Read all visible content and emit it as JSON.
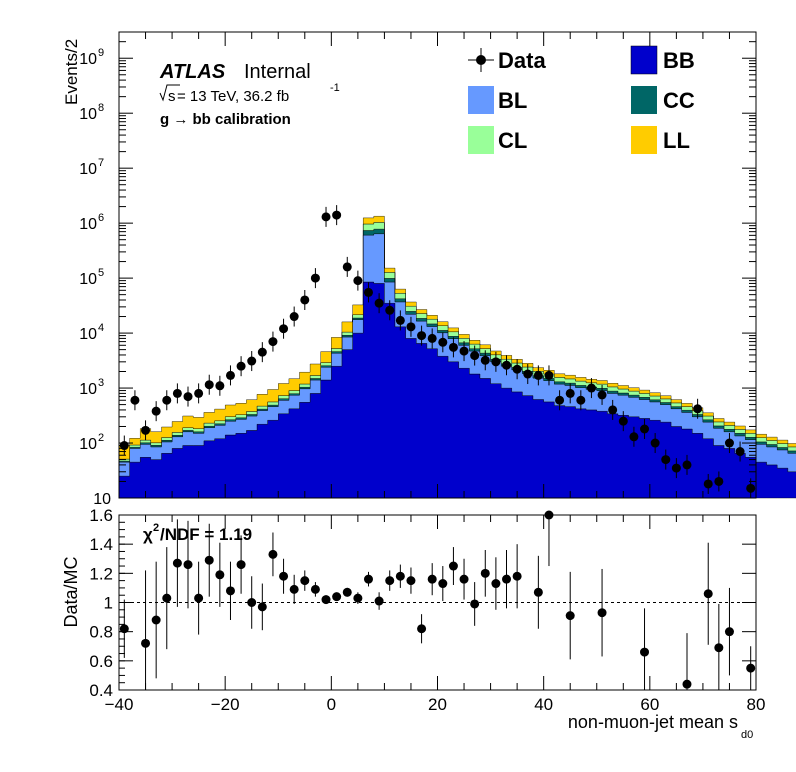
{
  "chart_data": [
    {
      "type": "histogram",
      "stacked": true,
      "log_scale_y": true,
      "ylabel": "Events/2",
      "xlim": [
        -40,
        80
      ],
      "ylim": [
        10,
        3000000000
      ],
      "y_tick_labels": [
        "10",
        "10^2",
        "10^3",
        "10^4",
        "10^5",
        "10^6",
        "10^7",
        "10^8",
        "10^9"
      ],
      "text": {
        "atlas": "ATLAS",
        "internal": "Internal",
        "energy_prefix": "s",
        "energy_text": " = 13 TeV, 36.2 fb",
        "energy_sup": "-1",
        "calibration": "g  → bb calibration"
      },
      "legend": [
        {
          "name": "Data",
          "color": "#000000",
          "kind": "marker"
        },
        {
          "name": "BB",
          "color": "#0000cc",
          "kind": "fill"
        },
        {
          "name": "BL",
          "color": "#6699ff",
          "kind": "fill"
        },
        {
          "name": "CC",
          "color": "#006666",
          "kind": "fill"
        },
        {
          "name": "CL",
          "color": "#99ff99",
          "kind": "fill"
        },
        {
          "name": "LL",
          "color": "#ffcc00",
          "kind": "fill"
        }
      ],
      "bin_edges_start": -40,
      "bin_width": 2,
      "series": [
        {
          "name": "BB",
          "color": "#0000cc",
          "values": [
            25,
            45,
            55,
            50,
            65,
            80,
            90,
            90,
            110,
            120,
            140,
            150,
            170,
            220,
            260,
            340,
            420,
            550,
            800,
            1400,
            2500,
            5000,
            10000,
            85000,
            80000,
            35000,
            13000,
            8000,
            6500,
            5200,
            3800,
            3000,
            2300,
            1800,
            1500,
            1200,
            1000,
            850,
            730,
            620,
            560,
            480,
            460,
            420,
            400,
            380,
            340,
            320,
            300,
            280,
            260,
            240,
            200,
            180,
            150,
            120,
            90,
            80,
            65,
            55,
            45,
            40,
            35,
            30,
            28,
            25,
            22,
            20,
            20,
            20
          ]
        },
        {
          "name": "BL",
          "color": "#6699ff",
          "values": [
            20,
            35,
            40,
            35,
            40,
            50,
            70,
            60,
            80,
            90,
            110,
            120,
            140,
            170,
            200,
            260,
            320,
            420,
            600,
            1000,
            1800,
            3500,
            7500,
            520000,
            560000,
            50000,
            24000,
            14000,
            10000,
            8000,
            6300,
            4900,
            3700,
            2900,
            2400,
            1800,
            1500,
            1300,
            1100,
            900,
            800,
            700,
            660,
            600,
            550,
            520,
            460,
            420,
            380,
            340,
            300,
            260,
            220,
            180,
            150,
            120,
            95,
            80,
            70,
            60,
            50,
            45,
            40,
            35,
            30,
            28,
            25,
            22,
            20,
            20
          ]
        },
        {
          "name": "CC",
          "color": "#006666",
          "values": [
            2,
            4,
            6,
            6,
            7,
            8,
            10,
            10,
            12,
            14,
            16,
            18,
            20,
            25,
            30,
            40,
            50,
            65,
            90,
            150,
            300,
            600,
            1300,
            130000,
            140000,
            14000,
            5000,
            2800,
            2000,
            1500,
            1100,
            850,
            650,
            500,
            420,
            330,
            270,
            230,
            190,
            160,
            140,
            120,
            110,
            100,
            95,
            90,
            80,
            72,
            65,
            58,
            52,
            45,
            40,
            35,
            30,
            25,
            20,
            18,
            15,
            12,
            10,
            9,
            8,
            7,
            6,
            6,
            5,
            5,
            5,
            5
          ]
        },
        {
          "name": "CL",
          "color": "#99ff99",
          "values": [
            4,
            8,
            12,
            10,
            14,
            18,
            20,
            22,
            28,
            30,
            35,
            40,
            45,
            55,
            70,
            90,
            110,
            150,
            200,
            350,
            650,
            1300,
            2800,
            230000,
            250000,
            28000,
            11000,
            6000,
            4200,
            3200,
            2400,
            1800,
            1400,
            1100,
            900,
            700,
            580,
            480,
            400,
            340,
            300,
            260,
            240,
            220,
            200,
            190,
            170,
            150,
            135,
            120,
            105,
            90,
            78,
            65,
            55,
            45,
            37,
            31,
            27,
            23,
            20,
            17,
            15,
            13,
            11,
            10,
            9,
            8,
            8,
            7
          ]
        },
        {
          "name": "LL",
          "color": "#ffcc00",
          "values": [
            40,
            30,
            70,
            60,
            70,
            90,
            120,
            110,
            130,
            160,
            190,
            200,
            240,
            300,
            380,
            480,
            580,
            760,
            1050,
            1700,
            3100,
            5600,
            11000,
            280000,
            310000,
            25000,
            10000,
            6000,
            4200,
            3200,
            2500,
            1900,
            1400,
            1100,
            900,
            700,
            580,
            480,
            400,
            340,
            300,
            260,
            240,
            220,
            200,
            190,
            170,
            150,
            135,
            120,
            105,
            90,
            78,
            65,
            55,
            45,
            37,
            31,
            27,
            23,
            20,
            17,
            15,
            13,
            11,
            10,
            9,
            8,
            8,
            7
          ]
        }
      ],
      "data_points": {
        "name": "Data",
        "x": [
          -39,
          -37,
          -35,
          -33,
          -31,
          -29,
          -27,
          -25,
          -23,
          -21,
          -19,
          -17,
          -15,
          -13,
          -11,
          -9,
          -7,
          -5,
          -3,
          -1,
          1,
          3,
          5,
          7,
          9,
          11,
          13,
          15,
          17,
          19,
          21,
          23,
          25,
          27,
          29,
          31,
          33,
          35,
          37,
          39,
          41,
          43,
          45,
          47,
          49,
          51,
          53,
          55,
          57,
          59,
          61,
          63,
          65,
          67,
          69,
          71,
          73,
          75,
          77,
          79
        ],
        "y": [
          90,
          600,
          170,
          380,
          600,
          800,
          700,
          800,
          1150,
          1100,
          1700,
          2500,
          3100,
          4500,
          7000,
          12000,
          20000,
          40000,
          100000,
          1300000,
          1400000,
          160000,
          90000,
          55000,
          35000,
          26000,
          17000,
          13000,
          9000,
          8000,
          6800,
          5500,
          4700,
          3900,
          3200,
          3000,
          2600,
          2200,
          1800,
          1700,
          1700,
          600,
          800,
          600,
          1000,
          750,
          400,
          250,
          130,
          180,
          100,
          50,
          35,
          40,
          420,
          18,
          20,
          100,
          70,
          15
        ]
      }
    },
    {
      "type": "scatter",
      "xlabel": "non-muon-jet mean s",
      "xlabel_sub": "d0",
      "ylabel": "Data/MC",
      "xlim": [
        -40,
        80
      ],
      "ylim": [
        0.4,
        1.6
      ],
      "x_tick_labels": [
        "−40",
        "−20",
        "0",
        "20",
        "40",
        "60",
        "80"
      ],
      "y_tick_labels": [
        "0.4",
        "0.6",
        "0.8",
        "1",
        "1.2",
        "1.4",
        "1.6"
      ],
      "reference_line": 1,
      "annotation_prefix": "χ",
      "annotation_sup": "2",
      "annotation_text": "/NDF = 1.19",
      "points": {
        "x": [
          -39,
          -35,
          -33,
          -31,
          -29,
          -27,
          -25,
          -23,
          -21,
          -19,
          -17,
          -15,
          -13,
          -11,
          -9,
          -7,
          -5,
          -3,
          -1,
          1,
          3,
          5,
          7,
          9,
          11,
          13,
          15,
          17,
          19,
          21,
          23,
          25,
          27,
          29,
          31,
          33,
          35,
          39,
          41,
          45,
          51,
          59,
          67,
          71,
          73,
          75,
          79
        ],
        "y": [
          0.82,
          0.72,
          0.88,
          1.03,
          1.27,
          1.26,
          1.03,
          1.29,
          1.19,
          1.08,
          1.26,
          1.0,
          0.97,
          1.33,
          1.18,
          1.09,
          1.15,
          1.09,
          1.02,
          1.04,
          1.07,
          1.03,
          1.16,
          1.01,
          1.15,
          1.18,
          1.15,
          0.82,
          1.16,
          1.13,
          1.25,
          1.16,
          0.99,
          1.2,
          1.13,
          1.16,
          1.18,
          1.07,
          1.6,
          0.91,
          0.93,
          0.66,
          0.44,
          1.06,
          0.69,
          0.8,
          0.55
        ],
        "err": [
          0.2,
          0.5,
          0.4,
          0.35,
          0.3,
          0.3,
          0.25,
          0.25,
          0.22,
          0.2,
          0.2,
          0.18,
          0.16,
          0.15,
          0.12,
          0.1,
          0.07,
          0.05,
          0.03,
          0.02,
          0.03,
          0.04,
          0.05,
          0.06,
          0.07,
          0.08,
          0.09,
          0.1,
          0.11,
          0.12,
          0.13,
          0.14,
          0.15,
          0.16,
          0.18,
          0.2,
          0.22,
          0.25,
          0.35,
          0.3,
          0.3,
          0.3,
          0.35,
          0.35,
          0.3,
          0.3,
          0.15
        ]
      }
    }
  ]
}
